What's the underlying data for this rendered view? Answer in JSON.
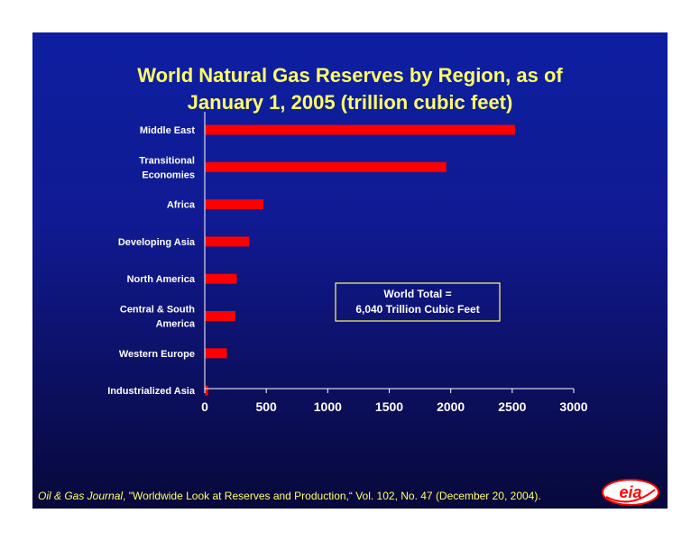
{
  "title_line1": "World Natural Gas Reserves by Region, as of",
  "title_line2": "January 1, 2005 (trillion cubic feet)",
  "colors": {
    "bar": "#ff0000",
    "text_label": "#ffffff",
    "title": "#ffff66",
    "annotation_border": "#ffff66"
  },
  "annotation": {
    "line1": "World Total =",
    "line2": "6,040 Trillion Cubic Feet"
  },
  "source": {
    "journal": "Oil & Gas Journal",
    "rest": ", \"Worldwide Look at Reserves and Production,“ Vol. 102, No. 47 (December 20, 2004)."
  },
  "logo": {
    "text": "eia",
    "icon": "eia-logo-icon"
  },
  "chart_data": {
    "type": "bar",
    "orientation": "horizontal",
    "title": "World Natural Gas Reserves by Region, as of January 1, 2005 (trillion cubic feet)",
    "categories": [
      [
        "Middle East"
      ],
      [
        "Transitional",
        "Economies"
      ],
      [
        "Africa"
      ],
      [
        "Developing Asia"
      ],
      [
        "North America"
      ],
      [
        "Central & South",
        "America"
      ],
      [
        "Western Europe"
      ],
      [
        "Industrialized Asia"
      ]
    ],
    "values": [
      2522,
      1964,
      477,
      363,
      260,
      249,
      180,
      27
    ],
    "xlim": [
      0,
      3000
    ],
    "xticks": [
      0,
      500,
      1000,
      1500,
      2000,
      2500,
      3000
    ],
    "grid": false,
    "legend": "none"
  }
}
